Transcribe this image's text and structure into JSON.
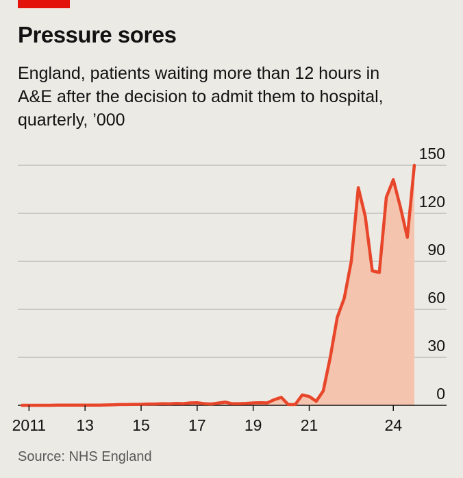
{
  "accent_color": "#e3120b",
  "title": "Pressure sores",
  "subtitle": "England, patients waiting more than 12 hours in A&E after the decision to admit them to hospital, quarterly, ’000",
  "source": "Source: NHS England",
  "chart_data": {
    "type": "area",
    "title": "Pressure sores",
    "subtitle": "England, patients waiting more than 12 hours in A&E after the decision to admit them to hospital, quarterly, ’000",
    "xlabel": "",
    "ylabel": "",
    "x_tick_labels": [
      "2011",
      "13",
      "15",
      "17",
      "19",
      "21",
      "24"
    ],
    "x_tick_years": [
      2011,
      2013,
      2015,
      2017,
      2019,
      2021,
      2024
    ],
    "xlim": [
      2010.6,
      2025.9
    ],
    "y_ticks": [
      0,
      30,
      60,
      90,
      120,
      150
    ],
    "ylim": [
      0,
      150
    ],
    "y_axis_position": "right",
    "grid": true,
    "line_color": "#e8462a",
    "fill_color": "#f4c4ae",
    "series": [
      {
        "x": [
          2010.75,
          2011.0,
          2011.25,
          2011.5,
          2011.75,
          2012.0,
          2012.25,
          2012.5,
          2012.75,
          2013.0,
          2013.25,
          2013.5,
          2013.75,
          2014.0,
          2014.25,
          2014.5,
          2014.75,
          2015.0,
          2015.25,
          2015.5,
          2015.75,
          2016.0,
          2016.25,
          2016.5,
          2016.75,
          2017.0,
          2017.25,
          2017.5,
          2017.75,
          2018.0,
          2018.25,
          2018.5,
          2018.75,
          2019.0,
          2019.25,
          2019.5,
          2019.75,
          2020.0,
          2020.25,
          2020.5,
          2020.75,
          2021.0,
          2021.25,
          2021.5,
          2021.75,
          2022.0,
          2022.25,
          2022.5,
          2022.75,
          2023.0,
          2023.25,
          2023.5,
          2023.75,
          2024.0,
          2024.25,
          2024.5,
          2024.75
        ],
        "values": [
          0,
          0,
          0,
          0,
          0,
          0.1,
          0.1,
          0.1,
          0.1,
          0.1,
          0.1,
          0.1,
          0.2,
          0.3,
          0.5,
          0.5,
          0.6,
          0.6,
          0.8,
          0.8,
          1.0,
          0.9,
          1.2,
          1.0,
          1.5,
          1.6,
          1.0,
          0.8,
          1.4,
          2.0,
          1.0,
          1.0,
          1.2,
          1.5,
          1.6,
          1.5,
          3.5,
          5.0,
          0.5,
          0.5,
          6.5,
          5.5,
          2.5,
          9.0,
          30.0,
          55.0,
          67.0,
          90.0,
          136.0,
          118.0,
          84.0,
          83.0,
          130.0,
          141.0,
          124.0,
          105.0,
          150.0
        ]
      }
    ]
  }
}
